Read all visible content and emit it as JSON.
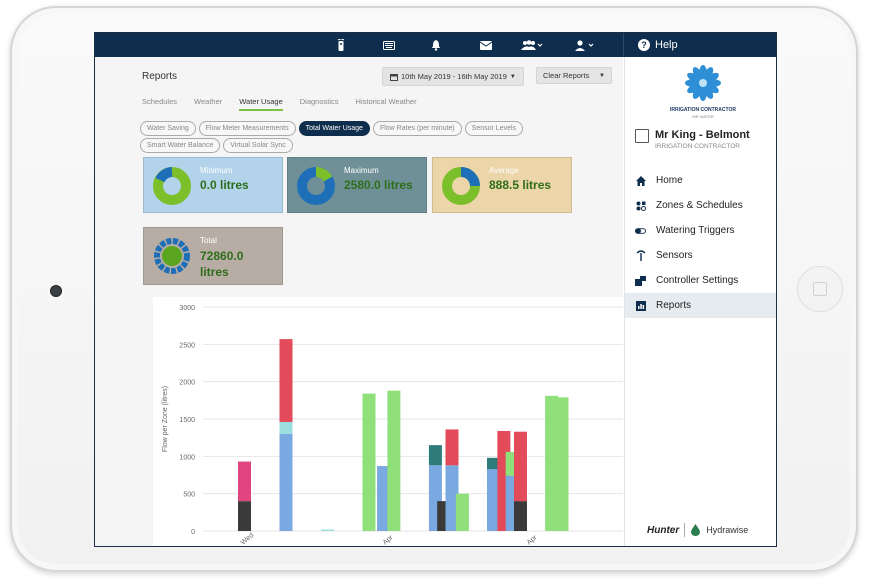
{
  "topbar": {
    "icons": [
      "remote-icon",
      "keyboard-icon",
      "bell-icon",
      "mail-icon",
      "users-icon",
      "user-icon"
    ],
    "help_label": "Help"
  },
  "main": {
    "title": "Reports",
    "date_range": "10th May 2019 - 16th May 2019",
    "clear_label": "Clear Reports",
    "tabs": [
      "Schedules",
      "Weather",
      "Water Usage",
      "Diagnostics",
      "Historical Weather"
    ],
    "active_tab": "Water Usage",
    "pills": [
      "Water Saving",
      "Flow Meter Measurements",
      "Total Water Usage",
      "Flow Rates (per minute)",
      "Sensor Levels",
      "Smart Water Balance",
      "Virtual Solar Sync"
    ],
    "active_pill": "Total Water Usage",
    "stats": {
      "minimum": {
        "label": "Minimum",
        "value": "0.0 litres",
        "color": "#b2d3ea"
      },
      "maximum": {
        "label": "Maximum",
        "value": "2580.0 litres",
        "color": "#6e9096"
      },
      "average": {
        "label": "Average",
        "value": "888.5 litres",
        "color": "#ebd5a9"
      },
      "total": {
        "label": "Total",
        "value": "72860.0 litres",
        "color": "#b8ada4"
      }
    }
  },
  "chart_data": {
    "type": "bar",
    "ylabel": "Flow per Zone (litres)",
    "ylim": [
      0,
      3000
    ],
    "yticks": [
      0,
      500,
      1000,
      1500,
      2000,
      2500,
      3000
    ],
    "x_tick_labels": [
      "Wed",
      "Apr",
      "Apr"
    ],
    "series_colors": [
      "#3a3a3a",
      "#7aa8e0",
      "#e34a5a",
      "#8fe07a",
      "#2e7d7a",
      "#e0457f",
      "#9adede"
    ],
    "bars": [
      {
        "x": 0,
        "stack": [
          {
            "v": 400,
            "c": 0
          },
          {
            "v": 530,
            "c": 5
          }
        ]
      },
      {
        "x": 1,
        "stack": [
          {
            "v": 1300,
            "c": 1
          },
          {
            "v": 160,
            "c": 6
          },
          {
            "v": 1110,
            "c": 2
          }
        ]
      },
      {
        "x": 2,
        "stack": [
          {
            "v": 20,
            "c": 6
          }
        ]
      },
      {
        "x": 3,
        "stack": [
          {
            "v": 1840,
            "c": 3
          }
        ]
      },
      {
        "x": 3.35,
        "stack": [
          {
            "v": 870,
            "c": 1
          }
        ]
      },
      {
        "x": 3.6,
        "stack": [
          {
            "v": 1880,
            "c": 3
          }
        ]
      },
      {
        "x": 4.6,
        "stack": [
          {
            "v": 880,
            "c": 1
          },
          {
            "v": 270,
            "c": 4
          }
        ]
      },
      {
        "x": 4.8,
        "stack": [
          {
            "v": 400,
            "c": 0
          }
        ]
      },
      {
        "x": 5.0,
        "stack": [
          {
            "v": 880,
            "c": 1
          },
          {
            "v": 480,
            "c": 2
          }
        ]
      },
      {
        "x": 5.25,
        "stack": [
          {
            "v": 500,
            "c": 3
          }
        ]
      },
      {
        "x": 6.0,
        "stack": [
          {
            "v": 830,
            "c": 1
          },
          {
            "v": 150,
            "c": 4
          }
        ]
      },
      {
        "x": 6.25,
        "stack": [
          {
            "v": 1340,
            "c": 2
          }
        ]
      },
      {
        "x": 6.45,
        "stack": [
          {
            "v": 740,
            "c": 1
          },
          {
            "v": 320,
            "c": 3
          }
        ]
      },
      {
        "x": 6.65,
        "stack": [
          {
            "v": 400,
            "c": 0
          },
          {
            "v": 930,
            "c": 2
          }
        ]
      },
      {
        "x": 7.4,
        "stack": [
          {
            "v": 1810,
            "c": 3
          }
        ]
      },
      {
        "x": 7.65,
        "stack": [
          {
            "v": 1790,
            "c": 3
          }
        ]
      }
    ]
  },
  "sidebar": {
    "logo_line1": "IRRIGATION CONTRACTOR",
    "logo_line2": "MR WATER",
    "user_name": "Mr King - Belmont",
    "user_role": "IRRIGATION CONTRACTOR",
    "nav": [
      {
        "label": "Home",
        "icon": "home-icon"
      },
      {
        "label": "Zones & Schedules",
        "icon": "zones-icon"
      },
      {
        "label": "Watering Triggers",
        "icon": "toggle-icon"
      },
      {
        "label": "Sensors",
        "icon": "antenna-icon"
      },
      {
        "label": "Controller Settings",
        "icon": "controller-icon"
      },
      {
        "label": "Reports",
        "icon": "reports-icon"
      }
    ],
    "active_nav": "Reports",
    "brand_hunter": "Hunter",
    "brand_hydrawise": "Hydrawise"
  }
}
